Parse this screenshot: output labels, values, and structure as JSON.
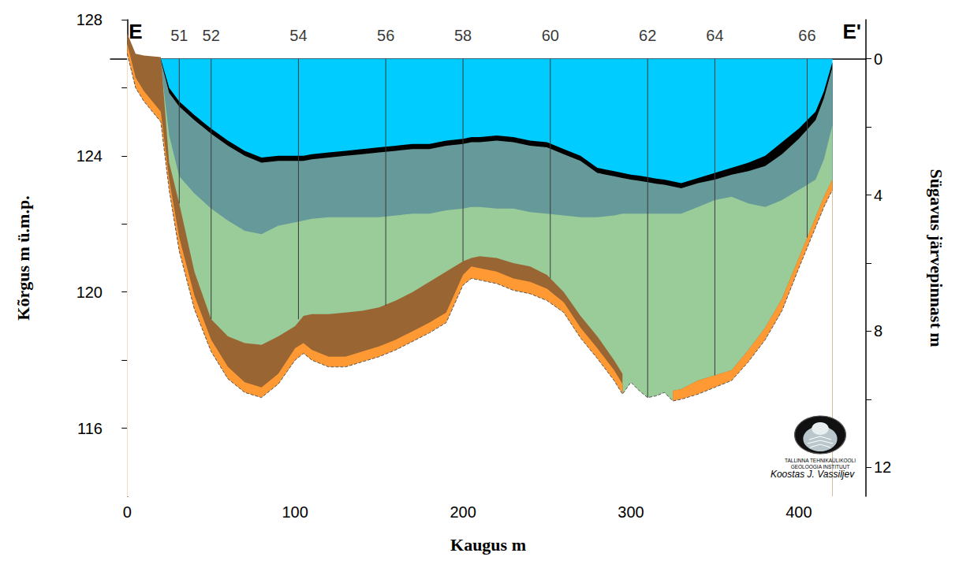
{
  "chart_data": {
    "type": "area",
    "section": {
      "start": "E",
      "end": "E'"
    },
    "x_label": "Kaugus m",
    "y_label": "Kõrgus m ü.m.p.",
    "y2_label": "Sügavus järvepinnast m",
    "xlim": [
      -10,
      440
    ],
    "xticks": [
      0,
      100,
      200,
      300,
      400
    ],
    "ylim": [
      114,
      128
    ],
    "yticks": [
      116,
      120,
      124,
      128
    ],
    "y2lim": [
      12.85,
      -1.15
    ],
    "y2ticks": [
      0,
      4,
      8,
      12
    ],
    "grid": false,
    "x": [
      0,
      5,
      10,
      20,
      25,
      31,
      40,
      50,
      60,
      70,
      80,
      90,
      100,
      105,
      110,
      120,
      130,
      140,
      150,
      160,
      170,
      180,
      190,
      200,
      205,
      210,
      220,
      230,
      240,
      250,
      260,
      270,
      280,
      290,
      295,
      300,
      305,
      310,
      315,
      320,
      325,
      330,
      340,
      350,
      360,
      370,
      380,
      390,
      400,
      410,
      415,
      420
    ],
    "series": [
      {
        "color": "#00CCFF",
        "values": [
          null,
          null,
          null,
          126.85,
          126.85,
          126.85,
          126.85,
          126.85,
          126.85,
          126.85,
          126.85,
          126.85,
          126.85,
          126.85,
          126.85,
          126.85,
          126.85,
          126.85,
          126.85,
          126.85,
          126.85,
          126.85,
          126.85,
          126.85,
          126.85,
          126.85,
          126.85,
          126.85,
          126.85,
          126.85,
          126.85,
          126.85,
          126.85,
          126.85,
          126.85,
          126.85,
          126.85,
          126.85,
          126.85,
          126.85,
          126.85,
          126.85,
          126.85,
          126.85,
          126.85,
          126.85,
          126.85,
          126.85,
          126.85,
          126.85,
          126.85,
          126.85
        ]
      },
      {
        "color": "#000000",
        "values": [
          null,
          null,
          null,
          126.85,
          126.0,
          125.6,
          125.2,
          124.8,
          124.45,
          124.15,
          123.95,
          124.0,
          124.0,
          124.0,
          124.05,
          124.1,
          124.15,
          124.2,
          124.25,
          124.3,
          124.35,
          124.35,
          124.45,
          124.5,
          124.55,
          124.55,
          124.6,
          124.55,
          124.45,
          124.4,
          124.2,
          124.0,
          123.65,
          123.55,
          123.5,
          123.45,
          123.42,
          123.38,
          123.33,
          123.3,
          123.25,
          123.2,
          123.35,
          123.5,
          123.65,
          123.8,
          124.0,
          124.4,
          124.8,
          125.3,
          125.9,
          126.75
        ]
      },
      {
        "color": "#669999",
        "values": [
          null,
          null,
          null,
          126.8,
          125.85,
          125.45,
          125.05,
          124.65,
          124.3,
          124.0,
          123.8,
          123.85,
          123.85,
          123.85,
          123.9,
          123.95,
          124.0,
          124.05,
          124.1,
          124.15,
          124.2,
          124.2,
          124.3,
          124.35,
          124.4,
          124.4,
          124.45,
          124.4,
          124.3,
          124.25,
          124.05,
          123.85,
          123.5,
          123.4,
          123.35,
          123.3,
          123.27,
          123.23,
          123.18,
          123.15,
          123.1,
          123.05,
          123.2,
          123.3,
          123.45,
          123.55,
          123.7,
          124.05,
          124.5,
          125.05,
          125.7,
          126.6
        ]
      },
      {
        "color": "#99CC99",
        "values": [
          null,
          null,
          null,
          126.7,
          124.6,
          123.4,
          122.9,
          122.45,
          122.1,
          121.8,
          121.7,
          121.95,
          122.05,
          122.1,
          122.15,
          122.2,
          122.2,
          122.2,
          122.2,
          122.25,
          122.3,
          122.3,
          122.4,
          122.45,
          122.5,
          122.5,
          122.45,
          122.45,
          122.35,
          122.3,
          122.25,
          122.2,
          122.2,
          122.25,
          122.3,
          122.3,
          122.3,
          122.3,
          122.3,
          122.3,
          122.3,
          122.3,
          122.5,
          122.7,
          122.8,
          122.6,
          122.5,
          122.7,
          123.0,
          123.3,
          123.9,
          124.9
        ]
      },
      {
        "color": "#996633",
        "values": [
          127.6,
          127.0,
          126.95,
          126.9,
          123.8,
          122.6,
          120.6,
          119.2,
          118.7,
          118.5,
          118.45,
          118.7,
          119.0,
          119.3,
          119.35,
          119.35,
          119.4,
          119.45,
          119.55,
          119.75,
          120.0,
          120.3,
          120.6,
          120.9,
          121.0,
          121.05,
          121.0,
          120.85,
          120.75,
          120.5,
          120.0,
          119.3,
          118.7,
          118.0,
          117.6,
          null,
          null,
          null,
          null,
          null,
          117.1,
          117.15,
          117.4,
          117.55,
          117.7,
          118.3,
          118.95,
          119.8,
          121.0,
          122.2,
          122.8,
          123.3
        ]
      },
      {
        "color": "#FF9933",
        "values": [
          127.3,
          126.3,
          125.9,
          125.3,
          123.3,
          121.6,
          119.9,
          118.6,
          117.8,
          117.35,
          117.2,
          117.6,
          118.35,
          118.5,
          118.3,
          118.1,
          118.1,
          118.25,
          118.4,
          118.6,
          118.85,
          119.1,
          119.4,
          120.5,
          120.75,
          120.7,
          120.6,
          120.4,
          120.3,
          120.1,
          119.7,
          118.95,
          118.35,
          117.7,
          117.3,
          null,
          null,
          null,
          null,
          null,
          117.1,
          117.15,
          117.4,
          117.55,
          117.7,
          118.3,
          118.95,
          119.8,
          121.0,
          122.2,
          122.8,
          123.3
        ]
      },
      {
        "color": "#FFFFFF",
        "line_style": "dashed",
        "values": [
          127.0,
          126.0,
          125.6,
          125.0,
          123.0,
          121.2,
          119.5,
          118.25,
          117.45,
          117.05,
          116.9,
          117.3,
          118.0,
          118.2,
          118.0,
          117.8,
          117.8,
          117.95,
          118.1,
          118.3,
          118.55,
          118.8,
          119.1,
          120.2,
          120.4,
          120.35,
          120.25,
          120.05,
          119.95,
          119.75,
          119.4,
          118.65,
          118.05,
          117.4,
          117.0,
          117.35,
          117.1,
          116.9,
          116.95,
          117.05,
          116.8,
          116.85,
          117.0,
          117.2,
          117.4,
          117.95,
          118.6,
          119.45,
          120.7,
          121.9,
          122.5,
          123.0
        ]
      }
    ],
    "boreholes": {
      "labels": [
        "51",
        "52",
        "54",
        "56",
        "58",
        "60",
        "62",
        "64",
        "66"
      ],
      "x": [
        31,
        50,
        102,
        154,
        200,
        252,
        310,
        350,
        405
      ],
      "top": [
        126.85,
        126.85,
        126.85,
        126.85,
        126.85,
        126.85,
        126.85,
        126.85,
        126.85
      ],
      "bottom": [
        122.6,
        119.2,
        119.2,
        119.6,
        120.9,
        120.4,
        116.9,
        117.55,
        121.6
      ]
    },
    "credit": "Koostas J. Vassiljev",
    "logo_text": [
      "TALLINNA TEHNIKAÜLIKOOLI",
      "GEOLOOGIA INSTITUUT"
    ]
  }
}
